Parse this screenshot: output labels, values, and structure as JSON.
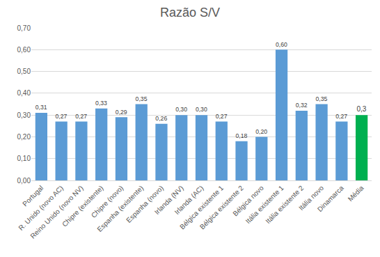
{
  "chart_data": {
    "type": "bar",
    "title": "Razão S/V",
    "categories": [
      "Portugal",
      "R. Unido (novo AC)",
      "Reino Unido (novo NV)",
      "Chipre (existente)",
      "Chipre (novo)",
      "Espanha (existente)",
      "Espanha (novo)",
      "Irlanda (NV)",
      "Irlanda (AC)",
      "Bélgica existente 1",
      "Bélgica existente 2",
      "Bélgica novo",
      "Itália existente 1",
      "Itália existente 2",
      "Itália novo",
      "Dinamarca",
      "Média"
    ],
    "values": [
      0.31,
      0.27,
      0.27,
      0.33,
      0.29,
      0.35,
      0.26,
      0.3,
      0.3,
      0.27,
      0.18,
      0.2,
      0.6,
      0.32,
      0.35,
      0.27,
      0.3
    ],
    "value_labels": [
      "0,31",
      "0,27",
      "0,27",
      "0,33",
      "0,29",
      "0,35",
      "0,26",
      "0,30",
      "0,30",
      "0,27",
      "0,18",
      "0,20",
      "0,60",
      "0,32",
      "0,35",
      "0,27",
      "0,3"
    ],
    "colors": [
      "#5b9bd5",
      "#5b9bd5",
      "#5b9bd5",
      "#5b9bd5",
      "#5b9bd5",
      "#5b9bd5",
      "#5b9bd5",
      "#5b9bd5",
      "#5b9bd5",
      "#5b9bd5",
      "#5b9bd5",
      "#5b9bd5",
      "#5b9bd5",
      "#5b9bd5",
      "#5b9bd5",
      "#5b9bd5",
      "#00b050"
    ],
    "ylim": [
      0,
      0.7
    ],
    "yticks": [
      {
        "value": 0,
        "label": "0,00"
      },
      {
        "value": 0.1,
        "label": "0,10"
      },
      {
        "value": 0.2,
        "label": "0,20"
      },
      {
        "value": 0.3,
        "label": "0,30"
      },
      {
        "value": 0.4,
        "label": "0,40"
      },
      {
        "value": 0.5,
        "label": "0,50"
      },
      {
        "value": 0.6,
        "label": "0,60"
      },
      {
        "value": 0.7,
        "label": "0,70"
      }
    ],
    "grid": true,
    "data_labels": true
  }
}
